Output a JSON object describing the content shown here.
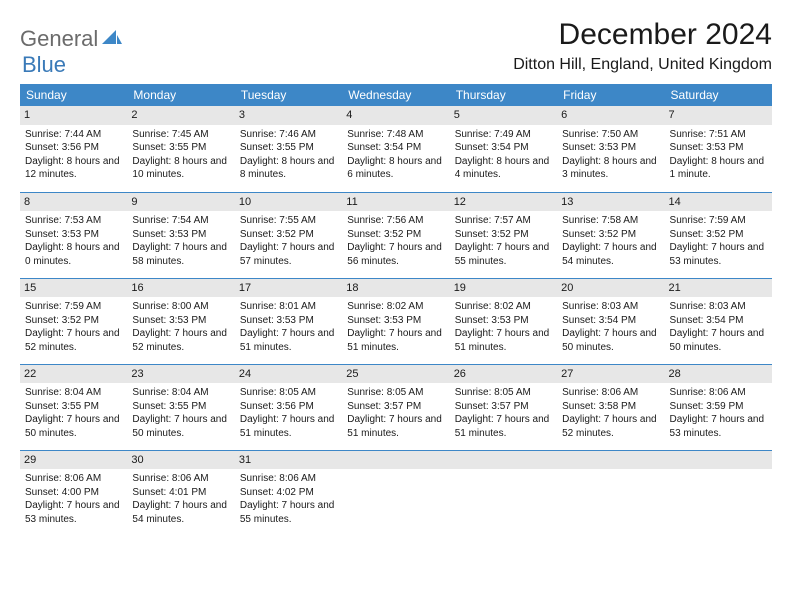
{
  "logo": {
    "word1": "General",
    "word2": "Blue",
    "color1": "#6b6b6b",
    "color2": "#3a7ab8",
    "accent": "#3d87c7"
  },
  "title": "December 2024",
  "location": "Ditton Hill, England, United Kingdom",
  "calendar": {
    "type": "table",
    "header_bg": "#3d87c7",
    "header_fg": "#ffffff",
    "daybar_bg": "#e7e7e7",
    "rule_color": "#3d87c7",
    "font_size_body": 10,
    "columns": [
      "Sunday",
      "Monday",
      "Tuesday",
      "Wednesday",
      "Thursday",
      "Friday",
      "Saturday"
    ],
    "weeks": [
      [
        {
          "d": "1",
          "sr": "7:44 AM",
          "ss": "3:56 PM",
          "dl": "8 hours and 12 minutes."
        },
        {
          "d": "2",
          "sr": "7:45 AM",
          "ss": "3:55 PM",
          "dl": "8 hours and 10 minutes."
        },
        {
          "d": "3",
          "sr": "7:46 AM",
          "ss": "3:55 PM",
          "dl": "8 hours and 8 minutes."
        },
        {
          "d": "4",
          "sr": "7:48 AM",
          "ss": "3:54 PM",
          "dl": "8 hours and 6 minutes."
        },
        {
          "d": "5",
          "sr": "7:49 AM",
          "ss": "3:54 PM",
          "dl": "8 hours and 4 minutes."
        },
        {
          "d": "6",
          "sr": "7:50 AM",
          "ss": "3:53 PM",
          "dl": "8 hours and 3 minutes."
        },
        {
          "d": "7",
          "sr": "7:51 AM",
          "ss": "3:53 PM",
          "dl": "8 hours and 1 minute."
        }
      ],
      [
        {
          "d": "8",
          "sr": "7:53 AM",
          "ss": "3:53 PM",
          "dl": "8 hours and 0 minutes."
        },
        {
          "d": "9",
          "sr": "7:54 AM",
          "ss": "3:53 PM",
          "dl": "7 hours and 58 minutes."
        },
        {
          "d": "10",
          "sr": "7:55 AM",
          "ss": "3:52 PM",
          "dl": "7 hours and 57 minutes."
        },
        {
          "d": "11",
          "sr": "7:56 AM",
          "ss": "3:52 PM",
          "dl": "7 hours and 56 minutes."
        },
        {
          "d": "12",
          "sr": "7:57 AM",
          "ss": "3:52 PM",
          "dl": "7 hours and 55 minutes."
        },
        {
          "d": "13",
          "sr": "7:58 AM",
          "ss": "3:52 PM",
          "dl": "7 hours and 54 minutes."
        },
        {
          "d": "14",
          "sr": "7:59 AM",
          "ss": "3:52 PM",
          "dl": "7 hours and 53 minutes."
        }
      ],
      [
        {
          "d": "15",
          "sr": "7:59 AM",
          "ss": "3:52 PM",
          "dl": "7 hours and 52 minutes."
        },
        {
          "d": "16",
          "sr": "8:00 AM",
          "ss": "3:53 PM",
          "dl": "7 hours and 52 minutes."
        },
        {
          "d": "17",
          "sr": "8:01 AM",
          "ss": "3:53 PM",
          "dl": "7 hours and 51 minutes."
        },
        {
          "d": "18",
          "sr": "8:02 AM",
          "ss": "3:53 PM",
          "dl": "7 hours and 51 minutes."
        },
        {
          "d": "19",
          "sr": "8:02 AM",
          "ss": "3:53 PM",
          "dl": "7 hours and 51 minutes."
        },
        {
          "d": "20",
          "sr": "8:03 AM",
          "ss": "3:54 PM",
          "dl": "7 hours and 50 minutes."
        },
        {
          "d": "21",
          "sr": "8:03 AM",
          "ss": "3:54 PM",
          "dl": "7 hours and 50 minutes."
        }
      ],
      [
        {
          "d": "22",
          "sr": "8:04 AM",
          "ss": "3:55 PM",
          "dl": "7 hours and 50 minutes."
        },
        {
          "d": "23",
          "sr": "8:04 AM",
          "ss": "3:55 PM",
          "dl": "7 hours and 50 minutes."
        },
        {
          "d": "24",
          "sr": "8:05 AM",
          "ss": "3:56 PM",
          "dl": "7 hours and 51 minutes."
        },
        {
          "d": "25",
          "sr": "8:05 AM",
          "ss": "3:57 PM",
          "dl": "7 hours and 51 minutes."
        },
        {
          "d": "26",
          "sr": "8:05 AM",
          "ss": "3:57 PM",
          "dl": "7 hours and 51 minutes."
        },
        {
          "d": "27",
          "sr": "8:06 AM",
          "ss": "3:58 PM",
          "dl": "7 hours and 52 minutes."
        },
        {
          "d": "28",
          "sr": "8:06 AM",
          "ss": "3:59 PM",
          "dl": "7 hours and 53 minutes."
        }
      ],
      [
        {
          "d": "29",
          "sr": "8:06 AM",
          "ss": "4:00 PM",
          "dl": "7 hours and 53 minutes."
        },
        {
          "d": "30",
          "sr": "8:06 AM",
          "ss": "4:01 PM",
          "dl": "7 hours and 54 minutes."
        },
        {
          "d": "31",
          "sr": "8:06 AM",
          "ss": "4:02 PM",
          "dl": "7 hours and 55 minutes."
        },
        null,
        null,
        null,
        null
      ]
    ]
  }
}
